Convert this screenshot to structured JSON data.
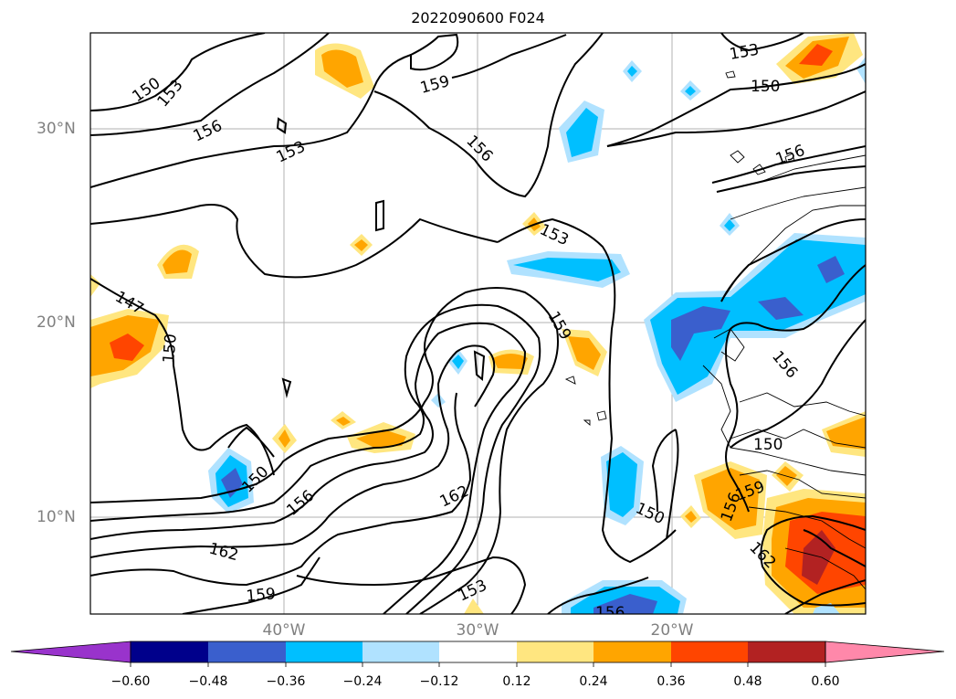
{
  "title": "2022090600 F024",
  "lat_labels": [
    "30°N",
    "20°N",
    "10°N"
  ],
  "lon_labels": [
    "40°W",
    "30°W",
    "20°W"
  ],
  "contour_labels": [
    "150",
    "153",
    "156",
    "153",
    "159",
    "156",
    "153",
    "147",
    "150",
    "159",
    "156",
    "150",
    "156",
    "162",
    "162",
    "159",
    "153",
    "150",
    "156",
    "150",
    "150",
    "153",
    "156",
    "162",
    "156",
    "159"
  ],
  "colorbar": {
    "ticks": [
      "−0.60",
      "−0.48",
      "−0.36",
      "−0.24",
      "−0.12",
      "0.12",
      "0.24",
      "0.36",
      "0.48",
      "0.60"
    ],
    "colors": [
      "#9933cc",
      "#00008b",
      "#3a5fcd",
      "#00bfff",
      "#b0e2ff",
      "#ffffff",
      "#ffe680",
      "#ffa500",
      "#ff4500",
      "#b22222",
      "#ff88aa"
    ]
  }
}
